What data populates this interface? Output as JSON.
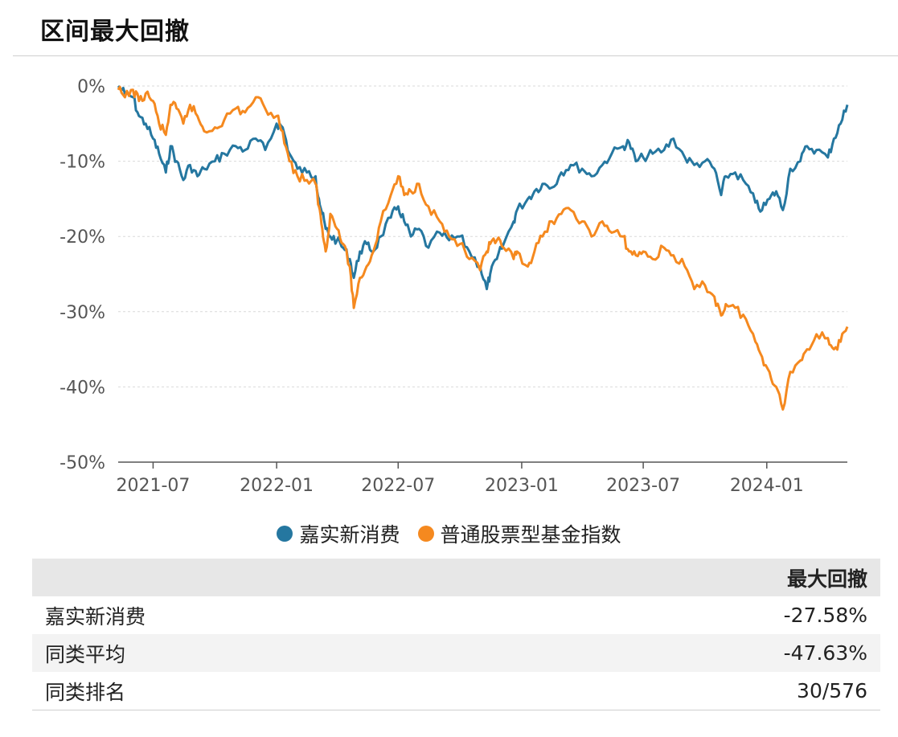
{
  "header": {
    "title": "区间最大回撤"
  },
  "colors": {
    "fund": "#2577a0",
    "index": "#f5891f"
  },
  "chart_data": {
    "type": "line",
    "ylim": [
      -50,
      0
    ],
    "yticks": [
      {
        "value": 0,
        "label": "0%"
      },
      {
        "value": -10,
        "label": "-10%"
      },
      {
        "value": -20,
        "label": "-20%"
      },
      {
        "value": -30,
        "label": "-30%"
      },
      {
        "value": -40,
        "label": "-40%"
      },
      {
        "value": -50,
        "label": "-50%"
      }
    ],
    "xlim": [
      "2021-05-10",
      "2024-04-30"
    ],
    "xticks": [
      {
        "value": "2021-07-01",
        "label": "2021-07"
      },
      {
        "value": "2022-01-01",
        "label": "2022-01"
      },
      {
        "value": "2022-07-01",
        "label": "2022-07"
      },
      {
        "value": "2023-01-01",
        "label": "2023-01"
      },
      {
        "value": "2023-07-01",
        "label": "2023-07"
      },
      {
        "value": "2024-01-01",
        "label": "2024-01"
      }
    ],
    "grid": true,
    "legend_position": "bottom",
    "series": [
      {
        "name": "嘉实新消费",
        "color": "#2577a0",
        "points": [
          [
            "2021-05-10",
            0
          ],
          [
            "2021-05-20",
            -1
          ],
          [
            "2021-06-01",
            -1.5
          ],
          [
            "2021-06-10",
            -4
          ],
          [
            "2021-06-20",
            -5
          ],
          [
            "2021-07-01",
            -7
          ],
          [
            "2021-07-10",
            -9
          ],
          [
            "2021-07-20",
            -11.5
          ],
          [
            "2021-07-27",
            -8
          ],
          [
            "2021-08-05",
            -10
          ],
          [
            "2021-08-15",
            -12.5
          ],
          [
            "2021-08-25",
            -10.5
          ],
          [
            "2021-09-05",
            -12
          ],
          [
            "2021-09-15",
            -11
          ],
          [
            "2021-10-01",
            -10
          ],
          [
            "2021-10-15",
            -9
          ],
          [
            "2021-11-01",
            -8
          ],
          [
            "2021-11-15",
            -8.5
          ],
          [
            "2021-12-01",
            -7
          ],
          [
            "2021-12-15",
            -8.5
          ],
          [
            "2022-01-01",
            -5
          ],
          [
            "2022-01-10",
            -5.5
          ],
          [
            "2022-01-20",
            -9
          ],
          [
            "2022-02-01",
            -11
          ],
          [
            "2022-02-15",
            -11.5
          ],
          [
            "2022-02-28",
            -12
          ],
          [
            "2022-03-05",
            -15
          ],
          [
            "2022-03-10",
            -17
          ],
          [
            "2022-03-15",
            -19
          ],
          [
            "2022-03-22",
            -20
          ],
          [
            "2022-04-01",
            -20.5
          ],
          [
            "2022-04-10",
            -21.5
          ],
          [
            "2022-04-20",
            -23
          ],
          [
            "2022-04-26",
            -25.5
          ],
          [
            "2022-05-05",
            -22
          ],
          [
            "2022-05-15",
            -21
          ],
          [
            "2022-05-25",
            -22
          ],
          [
            "2022-06-05",
            -20
          ],
          [
            "2022-06-20",
            -17.5
          ],
          [
            "2022-07-01",
            -16
          ],
          [
            "2022-07-10",
            -18
          ],
          [
            "2022-07-20",
            -20
          ],
          [
            "2022-08-01",
            -19
          ],
          [
            "2022-08-15",
            -21.5
          ],
          [
            "2022-09-01",
            -19.5
          ],
          [
            "2022-09-15",
            -20.5
          ],
          [
            "2022-10-01",
            -20
          ],
          [
            "2022-10-15",
            -22
          ],
          [
            "2022-10-31",
            -24
          ],
          [
            "2022-11-10",
            -27
          ],
          [
            "2022-11-15",
            -25
          ],
          [
            "2022-11-25",
            -23
          ],
          [
            "2022-12-05",
            -21
          ],
          [
            "2022-12-20",
            -18
          ],
          [
            "2022-12-25",
            -16.5
          ],
          [
            "2023-01-10",
            -15
          ],
          [
            "2023-01-20",
            -14
          ],
          [
            "2023-02-01",
            -13
          ],
          [
            "2023-02-15",
            -13.5
          ],
          [
            "2023-03-01",
            -11.5
          ],
          [
            "2023-03-15",
            -10.5
          ],
          [
            "2023-04-01",
            -11
          ],
          [
            "2023-04-15",
            -12
          ],
          [
            "2023-05-01",
            -10.5
          ],
          [
            "2023-05-15",
            -9
          ],
          [
            "2023-06-01",
            -8
          ],
          [
            "2023-06-10",
            -7.5
          ],
          [
            "2023-06-20",
            -10
          ],
          [
            "2023-07-01",
            -9.5
          ],
          [
            "2023-07-15",
            -9
          ],
          [
            "2023-08-01",
            -8.5
          ],
          [
            "2023-08-15",
            -7
          ],
          [
            "2023-09-01",
            -9.5
          ],
          [
            "2023-09-15",
            -10.5
          ],
          [
            "2023-10-01",
            -10
          ],
          [
            "2023-10-15",
            -11
          ],
          [
            "2023-10-25",
            -14.5
          ],
          [
            "2023-11-01",
            -12
          ],
          [
            "2023-11-15",
            -11.5
          ],
          [
            "2023-12-01",
            -13
          ],
          [
            "2023-12-15",
            -15.5
          ],
          [
            "2023-12-25",
            -16.5
          ],
          [
            "2024-01-05",
            -15
          ],
          [
            "2024-01-15",
            -14
          ],
          [
            "2024-01-25",
            -16.5
          ],
          [
            "2024-02-05",
            -11
          ],
          [
            "2024-02-20",
            -10
          ],
          [
            "2024-03-01",
            -8
          ],
          [
            "2024-03-15",
            -8.5
          ],
          [
            "2024-04-01",
            -9.5
          ],
          [
            "2024-04-10",
            -7
          ],
          [
            "2024-04-20",
            -5
          ],
          [
            "2024-04-30",
            -2.5
          ]
        ]
      },
      {
        "name": "普通股票型基金指数",
        "color": "#f5891f",
        "points": [
          [
            "2021-05-10",
            -0.5
          ],
          [
            "2021-05-20",
            -1.5
          ],
          [
            "2021-06-01",
            -0.5
          ],
          [
            "2021-06-10",
            -2
          ],
          [
            "2021-06-20",
            -1
          ],
          [
            "2021-07-01",
            -2
          ],
          [
            "2021-07-10",
            -5
          ],
          [
            "2021-07-20",
            -6.5
          ],
          [
            "2021-07-27",
            -2.5
          ],
          [
            "2021-08-05",
            -3
          ],
          [
            "2021-08-15",
            -5
          ],
          [
            "2021-08-25",
            -2.5
          ],
          [
            "2021-09-05",
            -4
          ],
          [
            "2021-09-15",
            -6
          ],
          [
            "2021-10-01",
            -5.5
          ],
          [
            "2021-10-15",
            -4.5
          ],
          [
            "2021-11-01",
            -3
          ],
          [
            "2021-11-15",
            -3.5
          ],
          [
            "2021-12-01",
            -1.5
          ],
          [
            "2021-12-15",
            -3
          ],
          [
            "2022-01-01",
            -4
          ],
          [
            "2022-01-10",
            -6
          ],
          [
            "2022-01-20",
            -10
          ],
          [
            "2022-02-01",
            -12
          ],
          [
            "2022-02-15",
            -12.5
          ],
          [
            "2022-02-28",
            -13
          ],
          [
            "2022-03-05",
            -16
          ],
          [
            "2022-03-10",
            -19
          ],
          [
            "2022-03-15",
            -22
          ],
          [
            "2022-03-22",
            -17
          ],
          [
            "2022-04-01",
            -19
          ],
          [
            "2022-04-10",
            -21
          ],
          [
            "2022-04-20",
            -24
          ],
          [
            "2022-04-26",
            -29.5
          ],
          [
            "2022-05-05",
            -25.5
          ],
          [
            "2022-05-15",
            -24
          ],
          [
            "2022-05-25",
            -22
          ],
          [
            "2022-06-05",
            -18
          ],
          [
            "2022-06-20",
            -14.5
          ],
          [
            "2022-07-01",
            -12
          ],
          [
            "2022-07-10",
            -14.5
          ],
          [
            "2022-07-20",
            -14
          ],
          [
            "2022-08-01",
            -13
          ],
          [
            "2022-08-15",
            -16
          ],
          [
            "2022-09-01",
            -18
          ],
          [
            "2022-09-15",
            -20
          ],
          [
            "2022-10-01",
            -21
          ],
          [
            "2022-10-15",
            -23
          ],
          [
            "2022-10-31",
            -24.5
          ],
          [
            "2022-11-10",
            -22
          ],
          [
            "2022-11-15",
            -21
          ],
          [
            "2022-11-25",
            -20.5
          ],
          [
            "2022-12-05",
            -21.5
          ],
          [
            "2022-12-20",
            -23
          ],
          [
            "2022-12-25",
            -22
          ],
          [
            "2023-01-10",
            -24
          ],
          [
            "2023-01-20",
            -22
          ],
          [
            "2023-02-01",
            -20
          ],
          [
            "2023-02-15",
            -18
          ],
          [
            "2023-03-01",
            -17
          ],
          [
            "2023-03-15",
            -16.5
          ],
          [
            "2023-04-01",
            -18
          ],
          [
            "2023-04-15",
            -20
          ],
          [
            "2023-05-01",
            -18
          ],
          [
            "2023-05-15",
            -19.5
          ],
          [
            "2023-06-01",
            -20
          ],
          [
            "2023-06-10",
            -22
          ],
          [
            "2023-06-20",
            -22.5
          ],
          [
            "2023-07-01",
            -22
          ],
          [
            "2023-07-15",
            -23
          ],
          [
            "2023-08-01",
            -21.5
          ],
          [
            "2023-08-15",
            -22.5
          ],
          [
            "2023-09-01",
            -24
          ],
          [
            "2023-09-15",
            -27
          ],
          [
            "2023-10-01",
            -26.5
          ],
          [
            "2023-10-15",
            -28
          ],
          [
            "2023-10-25",
            -30.5
          ],
          [
            "2023-11-01",
            -29
          ],
          [
            "2023-11-15",
            -29.5
          ],
          [
            "2023-12-01",
            -31
          ],
          [
            "2023-12-15",
            -34
          ],
          [
            "2023-12-25",
            -36
          ],
          [
            "2024-01-05",
            -38
          ],
          [
            "2024-01-15",
            -40
          ],
          [
            "2024-01-25",
            -43
          ],
          [
            "2024-02-05",
            -38
          ],
          [
            "2024-02-20",
            -36.5
          ],
          [
            "2024-03-01",
            -35
          ],
          [
            "2024-03-15",
            -33
          ],
          [
            "2024-04-01",
            -33.5
          ],
          [
            "2024-04-10",
            -35
          ],
          [
            "2024-04-20",
            -34
          ],
          [
            "2024-04-30",
            -32
          ]
        ]
      }
    ]
  },
  "legend": {
    "items": [
      "嘉实新消费",
      "普通股票型基金指数"
    ]
  },
  "table": {
    "header": "最大回撤",
    "rows": [
      {
        "name": "嘉实新消费",
        "value": "-27.58%"
      },
      {
        "name": "同类平均",
        "value": "-47.63%"
      },
      {
        "name": "同类排名",
        "value": "30/576"
      }
    ]
  }
}
